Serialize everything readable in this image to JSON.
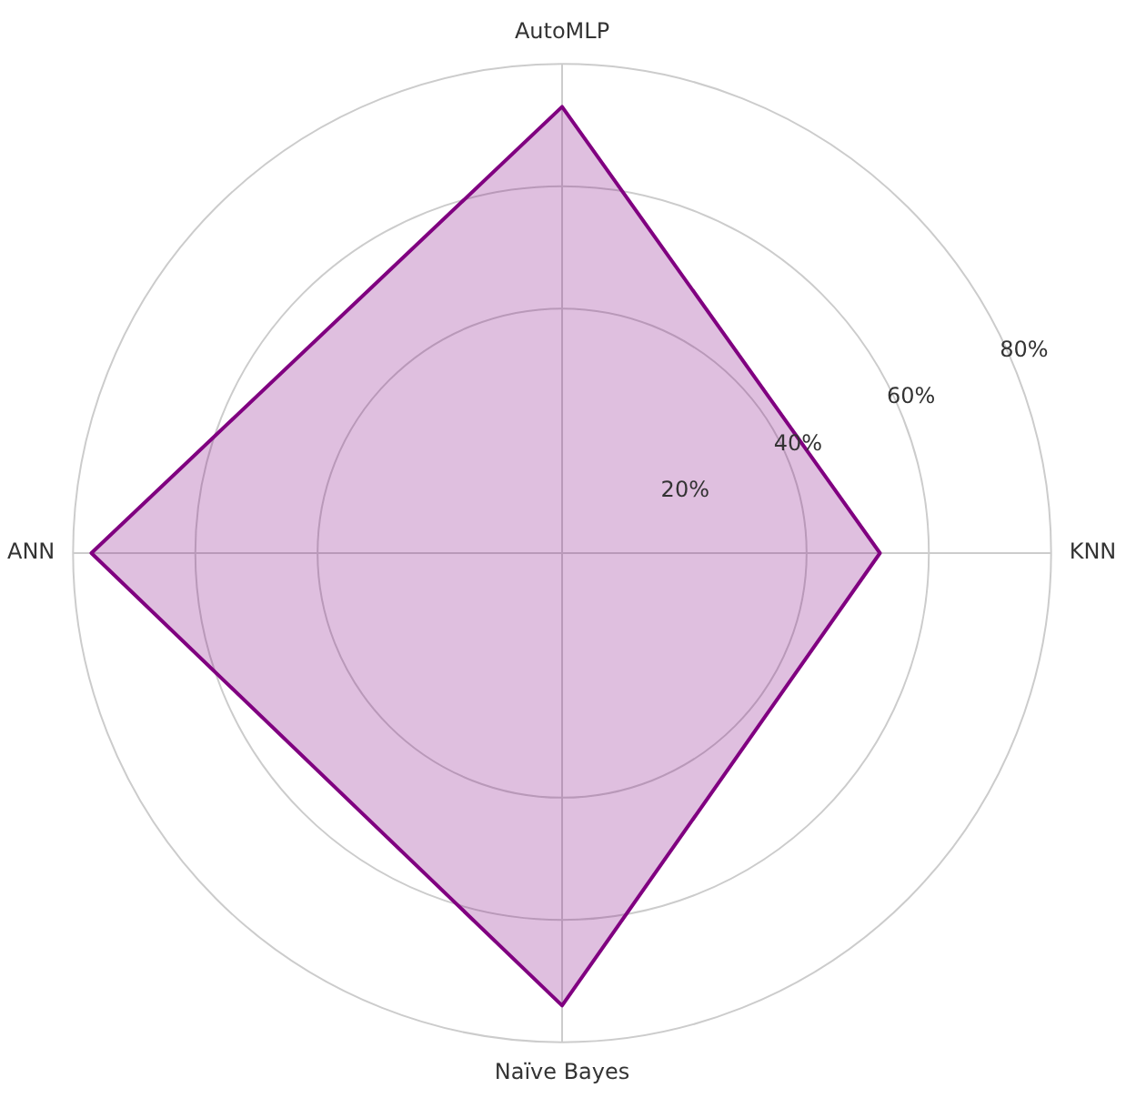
{
  "chart_data": {
    "type": "radar",
    "categories": [
      "AutoMLP",
      "KNN",
      "Naïve Bayes",
      "ANN"
    ],
    "series": [
      {
        "color": "#800080",
        "values": [
          73,
          52,
          74,
          77
        ]
      }
    ],
    "ylim": [
      0,
      80
    ],
    "yticks": [
      {
        "value": 20,
        "label": "20%"
      },
      {
        "value": 40,
        "label": "40%"
      },
      {
        "value": 60,
        "label": "60%"
      },
      {
        "value": 80,
        "label": "80%"
      }
    ],
    "grid": true,
    "legend": false
  }
}
